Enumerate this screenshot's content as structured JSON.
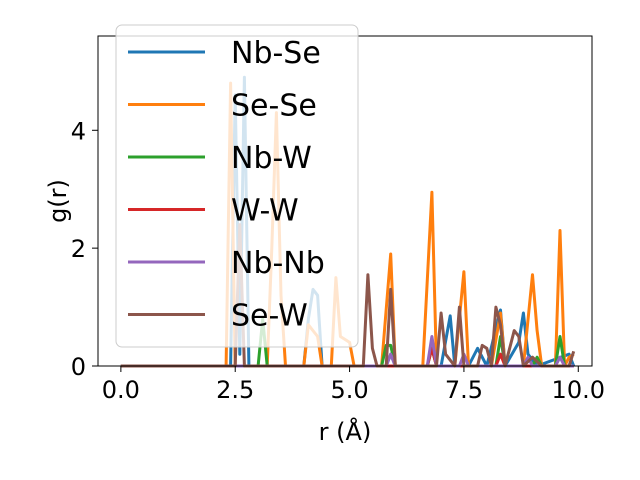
{
  "chart_data": {
    "type": "line",
    "xlabel": "r (Å)",
    "ylabel": "g(r)",
    "xlim": [
      -0.5,
      10.3
    ],
    "ylim": [
      0,
      5.6
    ],
    "xticks": [
      0.0,
      2.5,
      5.0,
      7.5,
      10.0
    ],
    "xtick_labels": [
      "0.0",
      "2.5",
      "5.0",
      "7.5",
      "10.0"
    ],
    "yticks": [
      0,
      2,
      4
    ],
    "ytick_labels": [
      "0",
      "2",
      "4"
    ],
    "grid": false,
    "legend_position": "upper-left",
    "series": [
      {
        "name": "Nb-Se",
        "color": "#1f77b4",
        "points": [
          [
            0,
            0
          ],
          [
            2.4,
            0
          ],
          [
            2.5,
            4.6
          ],
          [
            2.6,
            0.2
          ],
          [
            2.7,
            4.9
          ],
          [
            2.8,
            0
          ],
          [
            4.0,
            0
          ],
          [
            4.1,
            0.8
          ],
          [
            4.2,
            1.3
          ],
          [
            4.3,
            1.2
          ],
          [
            4.4,
            0
          ],
          [
            5.8,
            0
          ],
          [
            5.9,
            0.2
          ],
          [
            6.0,
            0
          ],
          [
            7.0,
            0
          ],
          [
            7.2,
            0.85
          ],
          [
            7.3,
            0
          ],
          [
            7.6,
            0
          ],
          [
            7.8,
            0.3
          ],
          [
            8.0,
            0
          ],
          [
            8.3,
            0.95
          ],
          [
            8.4,
            0
          ],
          [
            8.7,
            0.4
          ],
          [
            8.8,
            0.9
          ],
          [
            8.9,
            0.2
          ],
          [
            9.1,
            0
          ],
          [
            9.8,
            0.2
          ],
          [
            9.9,
            0
          ]
        ]
      },
      {
        "name": "Se-Se",
        "color": "#ff7f0e",
        "points": [
          [
            0,
            0
          ],
          [
            2.3,
            0
          ],
          [
            2.4,
            4.8
          ],
          [
            2.5,
            0
          ],
          [
            3.2,
            0
          ],
          [
            3.3,
            2.0
          ],
          [
            3.4,
            4.3
          ],
          [
            3.5,
            1.2
          ],
          [
            3.6,
            0
          ],
          [
            4.0,
            0
          ],
          [
            4.1,
            0.7
          ],
          [
            4.3,
            0.5
          ],
          [
            4.4,
            0
          ],
          [
            4.6,
            0
          ],
          [
            4.7,
            1.5
          ],
          [
            4.8,
            0.5
          ],
          [
            5.0,
            0.4
          ],
          [
            5.1,
            0
          ],
          [
            5.7,
            0
          ],
          [
            5.9,
            1.9
          ],
          [
            6.0,
            0
          ],
          [
            6.6,
            0
          ],
          [
            6.8,
            2.95
          ],
          [
            6.9,
            0
          ],
          [
            7.3,
            0
          ],
          [
            7.5,
            1.6
          ],
          [
            7.6,
            0
          ],
          [
            8.1,
            0
          ],
          [
            8.3,
            0.9
          ],
          [
            8.4,
            0
          ],
          [
            8.8,
            0
          ],
          [
            9.0,
            1.55
          ],
          [
            9.1,
            0.6
          ],
          [
            9.2,
            0
          ],
          [
            9.5,
            0
          ],
          [
            9.6,
            2.3
          ],
          [
            9.7,
            0
          ],
          [
            9.8,
            0.15
          ],
          [
            9.9,
            0.2
          ]
        ]
      },
      {
        "name": "Nb-W",
        "color": "#2ca02c",
        "points": [
          [
            0,
            0
          ],
          [
            3.0,
            0
          ],
          [
            3.1,
            0.8
          ],
          [
            3.2,
            0
          ],
          [
            5.7,
            0
          ],
          [
            5.8,
            0.35
          ],
          [
            5.9,
            0.35
          ],
          [
            6.0,
            0
          ],
          [
            6.7,
            0
          ],
          [
            6.8,
            0.3
          ],
          [
            6.9,
            0
          ],
          [
            8.2,
            0
          ],
          [
            8.3,
            0.5
          ],
          [
            8.4,
            0
          ],
          [
            9.0,
            0
          ],
          [
            9.1,
            0.15
          ],
          [
            9.2,
            0
          ],
          [
            9.5,
            0
          ],
          [
            9.6,
            0.5
          ],
          [
            9.7,
            0
          ],
          [
            9.9,
            0
          ]
        ]
      },
      {
        "name": "W-W",
        "color": "#d62728",
        "points": [
          [
            0,
            0
          ],
          [
            6.7,
            0
          ],
          [
            6.8,
            0.3
          ],
          [
            6.9,
            0
          ],
          [
            8.2,
            0
          ],
          [
            8.3,
            0.2
          ],
          [
            8.4,
            0
          ],
          [
            9.9,
            0
          ]
        ]
      },
      {
        "name": "Nb-Nb",
        "color": "#9467bd",
        "points": [
          [
            0,
            0
          ],
          [
            5.8,
            0
          ],
          [
            5.9,
            0.2
          ],
          [
            6.0,
            0
          ],
          [
            6.7,
            0
          ],
          [
            6.8,
            0.5
          ],
          [
            6.9,
            0
          ],
          [
            7.4,
            0
          ],
          [
            7.5,
            0.2
          ],
          [
            7.6,
            0
          ],
          [
            8.8,
            0
          ],
          [
            8.9,
            0.15
          ],
          [
            9.0,
            0
          ],
          [
            9.5,
            0
          ],
          [
            9.6,
            0.15
          ],
          [
            9.7,
            0
          ],
          [
            9.9,
            0
          ]
        ]
      },
      {
        "name": "Se-W",
        "color": "#8c564b",
        "points": [
          [
            0,
            0
          ],
          [
            2.5,
            0
          ],
          [
            2.6,
            2.4
          ],
          [
            2.7,
            0
          ],
          [
            5.3,
            0
          ],
          [
            5.4,
            1.55
          ],
          [
            5.5,
            0.3
          ],
          [
            5.6,
            0
          ],
          [
            5.8,
            0
          ],
          [
            5.9,
            1.3
          ],
          [
            6.0,
            0
          ],
          [
            6.9,
            0
          ],
          [
            7.0,
            0.9
          ],
          [
            7.1,
            0.2
          ],
          [
            7.3,
            0
          ],
          [
            7.4,
            1.0
          ],
          [
            7.5,
            0
          ],
          [
            7.8,
            0
          ],
          [
            7.9,
            0.35
          ],
          [
            8.0,
            0.3
          ],
          [
            8.1,
            0
          ],
          [
            8.2,
            1.0
          ],
          [
            8.3,
            0.7
          ],
          [
            8.4,
            0
          ],
          [
            8.6,
            0.6
          ],
          [
            8.7,
            0.5
          ],
          [
            8.8,
            0
          ],
          [
            9.0,
            0.15
          ],
          [
            9.2,
            0
          ],
          [
            9.8,
            0
          ],
          [
            9.9,
            0.25
          ]
        ]
      }
    ]
  }
}
